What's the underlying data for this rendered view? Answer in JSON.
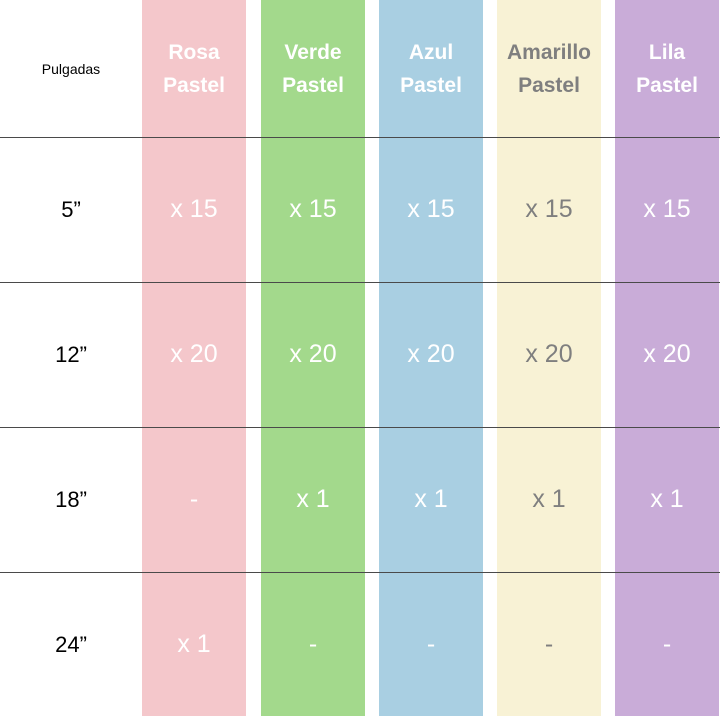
{
  "corner_label": "Pulgadas",
  "columns": [
    {
      "name": "Rosa\nPastel",
      "bg": "#f4c7cb",
      "fg": "#ffffff"
    },
    {
      "name": "Verde\nPastel",
      "bg": "#a3d98c",
      "fg": "#ffffff"
    },
    {
      "name": "Azul\nPastel",
      "bg": "#a9cfe2",
      "fg": "#ffffff"
    },
    {
      "name": "Amarillo\nPastel",
      "bg": "#f8f2d5",
      "fg": "#7f7f7f"
    },
    {
      "name": "Lila\nPastel",
      "bg": "#c9acd8",
      "fg": "#ffffff"
    }
  ],
  "rows": [
    {
      "size": "5”",
      "values": [
        "x 15",
        "x 15",
        "x 15",
        "x 15",
        "x 15"
      ]
    },
    {
      "size": "12”",
      "values": [
        "x 20",
        "x 20",
        "x 20",
        "x 20",
        "x 20"
      ]
    },
    {
      "size": "18”",
      "values": [
        "-",
        "x 1",
        "x 1",
        "x 1",
        "x 1"
      ]
    },
    {
      "size": "24”",
      "values": [
        "x 1",
        "-",
        "-",
        "-",
        "-"
      ]
    }
  ]
}
